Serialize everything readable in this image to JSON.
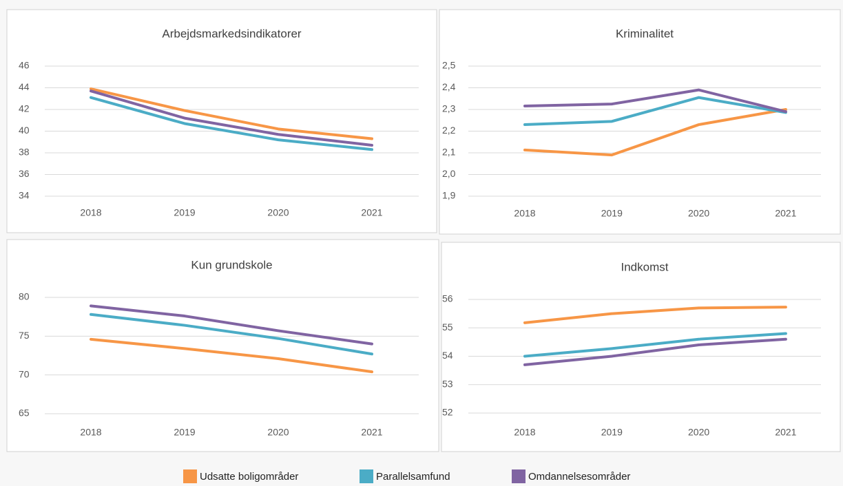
{
  "chart_data": [
    {
      "type": "line",
      "title": "Arbejdsmarkedsindikatorer",
      "categories": [
        "2018",
        "2019",
        "2020",
        "2021"
      ],
      "ylim": [
        34,
        46
      ],
      "yticks": [
        34,
        36,
        38,
        40,
        42,
        44,
        46
      ],
      "grid": true,
      "series": [
        {
          "name": "Udsatte boligområder",
          "color": "#f79646",
          "values": [
            43.9,
            41.9,
            40.2,
            39.3
          ]
        },
        {
          "name": "Parallelsamfund",
          "color": "#4bacc6",
          "values": [
            43.1,
            40.7,
            39.2,
            38.3
          ]
        },
        {
          "name": "Omdannelsesområder",
          "color": "#8064a2",
          "values": [
            43.7,
            41.2,
            39.7,
            38.7
          ]
        }
      ]
    },
    {
      "type": "line",
      "title": "Kriminalitet",
      "categories": [
        "2018",
        "2019",
        "2020",
        "2021"
      ],
      "ylim": [
        1.9,
        2.5
      ],
      "yticks": [
        {
          "value": 1.9,
          "label": "1,9"
        },
        {
          "value": 2.0,
          "label": "2,0"
        },
        {
          "value": 2.1,
          "label": "2,1"
        },
        {
          "value": 2.2,
          "label": "2,2"
        },
        {
          "value": 2.3,
          "label": "2,3"
        },
        {
          "value": 2.4,
          "label": "2,4"
        },
        {
          "value": 2.5,
          "label": "2,5"
        }
      ],
      "grid": true,
      "series": [
        {
          "name": "Udsatte boligområder",
          "color": "#f79646",
          "values": [
            2.113,
            2.09,
            2.23,
            2.3
          ]
        },
        {
          "name": "Parallelsamfund",
          "color": "#4bacc6",
          "values": [
            2.23,
            2.245,
            2.355,
            2.286
          ]
        },
        {
          "name": "Omdannelsesområder",
          "color": "#8064a2",
          "values": [
            2.316,
            2.325,
            2.39,
            2.29
          ]
        }
      ]
    },
    {
      "type": "line",
      "title": "Kun grundskole",
      "categories": [
        "2018",
        "2019",
        "2020",
        "2021"
      ],
      "ylim": [
        65,
        80
      ],
      "yticks": [
        65,
        70,
        75,
        80
      ],
      "grid": true,
      "series": [
        {
          "name": "Udsatte boligområder",
          "color": "#f79646",
          "values": [
            74.6,
            73.4,
            72.1,
            70.4
          ]
        },
        {
          "name": "Parallelsamfund",
          "color": "#4bacc6",
          "values": [
            77.8,
            76.4,
            74.7,
            72.7
          ]
        },
        {
          "name": "Omdannelsesområder",
          "color": "#8064a2",
          "values": [
            78.9,
            77.6,
            75.7,
            74.0
          ]
        }
      ]
    },
    {
      "type": "line",
      "title": "Indkomst",
      "categories": [
        "2018",
        "2019",
        "2020",
        "2021"
      ],
      "ylim": [
        52,
        56
      ],
      "yticks": [
        52,
        53,
        54,
        55,
        56
      ],
      "grid": true,
      "series": [
        {
          "name": "Udsatte boligområder",
          "color": "#f79646",
          "values": [
            55.18,
            55.5,
            55.7,
            55.73
          ]
        },
        {
          "name": "Parallelsamfund",
          "color": "#4bacc6",
          "values": [
            54.0,
            54.27,
            54.6,
            54.8
          ]
        },
        {
          "name": "Omdannelsesområder",
          "color": "#8064a2",
          "values": [
            53.7,
            54.0,
            54.4,
            54.6
          ]
        }
      ]
    }
  ]
}
